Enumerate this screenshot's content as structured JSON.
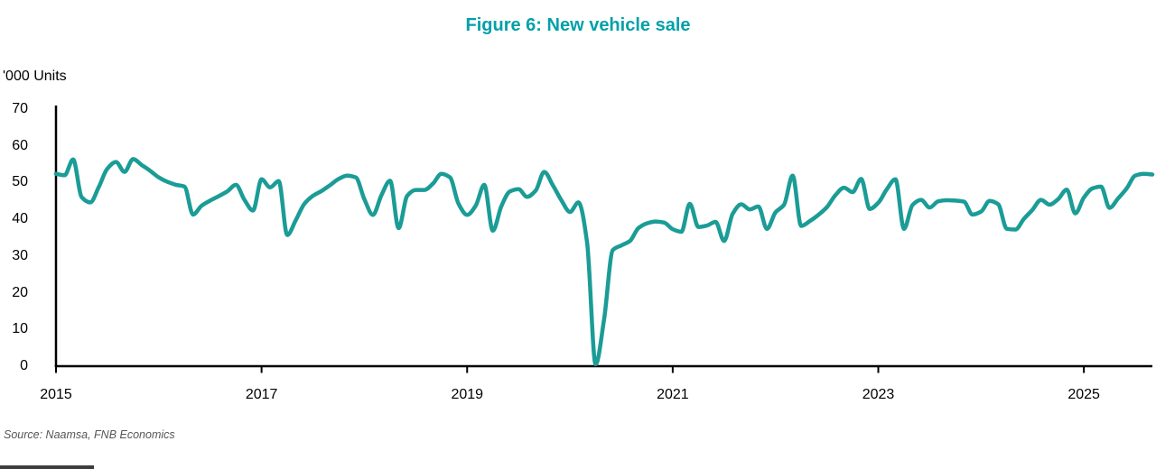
{
  "title": "Figure 6: New vehicle sale",
  "y_axis_unit": "'000 Units",
  "source": "Source: Naamsa, FNB Economics",
  "chart_data": {
    "type": "line",
    "title": "Figure 6: New vehicle sale",
    "ylabel": "'000 Units",
    "series_name": "New vehicle sales ('000 units, monthly)",
    "frequency": "monthly",
    "start": "2015-01",
    "end": "2025-09",
    "x_tick_labels": [
      "2015",
      "2017",
      "2019",
      "2021",
      "2023",
      "2025"
    ],
    "y_ticks": [
      0,
      10,
      20,
      30,
      40,
      50,
      60,
      70
    ],
    "ylim": [
      0,
      70
    ],
    "grid": false,
    "legend": "none",
    "line_color": "#1B9C96",
    "title_color": "#00A0AA",
    "axis_color": "#000000",
    "values": [
      52.4,
      52.0,
      56.3,
      46.0,
      44.6,
      48.8,
      53.8,
      55.6,
      52.9,
      56.4,
      54.8,
      53.2,
      51.4,
      50.2,
      49.4,
      48.9,
      41.3,
      43.7,
      45.1,
      46.3,
      47.6,
      49.4,
      45.3,
      42.4,
      50.9,
      48.7,
      50.4,
      35.7,
      39.8,
      44.2,
      46.4,
      47.7,
      49.3,
      51.0,
      51.9,
      51.4,
      45.5,
      41.2,
      46.6,
      50.5,
      37.6,
      46.4,
      48.0,
      48.0,
      49.7,
      52.4,
      51.4,
      44.2,
      41.2,
      43.7,
      49.4,
      36.9,
      43.6,
      47.6,
      48.2,
      46.1,
      47.8,
      52.9,
      49.3,
      45.2,
      42.0,
      44.6,
      33.8,
      0.5,
      13.0,
      31.6,
      32.9,
      34.1,
      37.6,
      38.9,
      39.4,
      39.1,
      37.3,
      36.6,
      44.2,
      37.9,
      38.3,
      39.3,
      34.1,
      41.5,
      44.1,
      42.7,
      43.5,
      37.4,
      41.9,
      44.0,
      51.9,
      38.2,
      39.5,
      41.2,
      43.3,
      46.6,
      48.6,
      47.4,
      51.0,
      42.8,
      44.5,
      48.2,
      50.9,
      37.4,
      43.9,
      45.3,
      43.2,
      44.9,
      45.2,
      45.1,
      44.8,
      41.3,
      42.1,
      45.0,
      44.1,
      37.4,
      37.2,
      40.1,
      42.6,
      45.3,
      44.0,
      45.5,
      48.1,
      41.6,
      45.9,
      48.4,
      48.9,
      43.1,
      45.7,
      48.4,
      51.9,
      52.4,
      52.2
    ]
  }
}
